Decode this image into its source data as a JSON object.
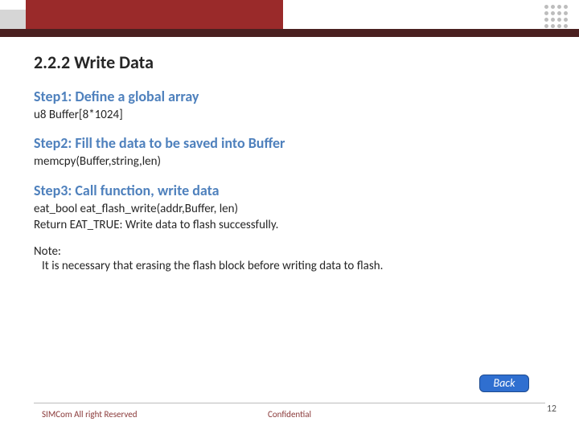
{
  "title": "2.2.2 Write Data",
  "steps": [
    {
      "heading": "Step1: Define a global array",
      "body": "u8 Buffer[8*1024]"
    },
    {
      "heading": "Step2: Fill the data to be saved into Buffer",
      "body": "memcpy(Buffer,string,len)"
    },
    {
      "heading": "Step3: Call function, write data",
      "body": "eat_bool eat_flash_write(addr,Buffer, len)\nReturn EAT_TRUE:  Write data to flash successfully."
    }
  ],
  "note_label": "Note:",
  "note_body": "It is necessary that erasing the flash block before writing data to flash.",
  "back_label": "Back",
  "footer_left": "SIMCom All right Reserved",
  "footer_center": "Confidential",
  "page_number": "12",
  "colors": {
    "accent_red": "#9a2a2a",
    "dark_bar": "#4a2020",
    "step_heading": "#4f81bd",
    "back_button": "#2f6fd0",
    "footer_text": "#8a3a3a"
  }
}
